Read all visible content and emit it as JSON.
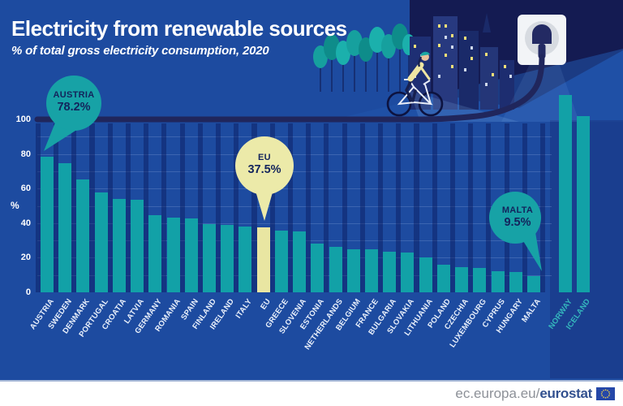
{
  "header": {
    "title": "Electricity from renewable sources",
    "subtitle": "% of total gross electricity consumption, 2020"
  },
  "chart_data": {
    "type": "bar",
    "title": "Electricity from renewable sources",
    "subtitle": "% of total gross electricity consumption, 2020",
    "ylabel": "%",
    "yticks": [
      0,
      20,
      40,
      60,
      80,
      100
    ],
    "ylim": [
      0,
      100
    ],
    "grid": "horizontal, every 10%",
    "categories": [
      "AUSTRIA",
      "SWEDEN",
      "DENMARK",
      "PORTUGAL",
      "CROATIA",
      "LATVIA",
      "GERMANY",
      "ROMANIA",
      "SPAIN",
      "FINLAND",
      "IRELAND",
      "ITALY",
      "EU",
      "GREECE",
      "SLOVENIA",
      "ESTONIA",
      "NETHERLANDS",
      "BELGIUM",
      "FRANCE",
      "BULGARIA",
      "SLOVAKIA",
      "LITHUANIA",
      "POLAND",
      "CZECHIA",
      "LUXEMBOURG",
      "CYPRUS",
      "HUNGARY",
      "MALTA",
      "NORWAY",
      "ICELAND"
    ],
    "values": [
      78.2,
      74.5,
      65.3,
      58.0,
      53.8,
      53.4,
      44.7,
      43.4,
      42.9,
      39.6,
      39.1,
      38.1,
      37.5,
      35.9,
      35.1,
      28.3,
      26.4,
      25.1,
      24.8,
      23.6,
      23.1,
      20.2,
      16.2,
      14.8,
      13.9,
      12.0,
      11.9,
      9.5,
      114,
      102
    ],
    "note": "Norway and Iceland bars exceed the 100% line; their values are estimated from bar heights (not labelled in the image). Labels for Norway and Iceland are teal; all other labels white. EU bar is yellow.",
    "highlighted_category": "EU",
    "eea_categories": [
      "NORWAY",
      "ICELAND"
    ],
    "annotations": {
      "austria": {
        "label": "AUSTRIA",
        "value": "78.2%"
      },
      "eu": {
        "label": "EU",
        "value": "37.5%"
      },
      "malta": {
        "label": "MALTA",
        "value": "9.5%"
      }
    }
  },
  "footer": {
    "url_prefix": "ec.europa.eu/",
    "brand": "eurostat"
  },
  "colors": {
    "background": "#1d4ba0",
    "night_sky": "#141b52",
    "bar_teal": "#12a1a7",
    "bar_eu_yellow": "#e9e6a2",
    "callout_teal": "#17a2a6",
    "callout_yellow": "#eceaa9",
    "callout_text": "#13245c",
    "cable_navy": "#20265c",
    "axis_text": "#ffffff",
    "eea_label_teal": "#35b7bd",
    "footer_url_grey": "#8d9198",
    "footer_brand_blue": "#32508f",
    "eu_flag_blue": "#2547a8",
    "eu_flag_stars": "#f4d54a"
  }
}
